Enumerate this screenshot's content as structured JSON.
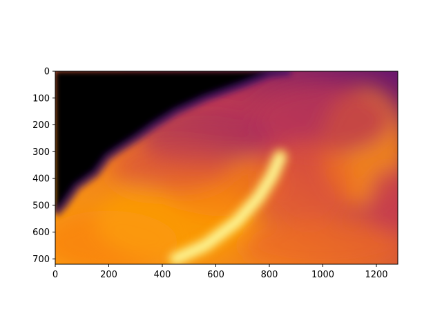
{
  "chart_data": {
    "type": "heatmap",
    "title": "",
    "xlabel": "",
    "ylabel": "",
    "colormap": "inferno",
    "image_size": {
      "cols": 1280,
      "rows": 720
    },
    "xlim": [
      0,
      1280
    ],
    "ylim": [
      720,
      0
    ],
    "x_ticks": [
      0,
      200,
      400,
      600,
      800,
      1000,
      1200
    ],
    "y_ticks": [
      0,
      100,
      200,
      300,
      400,
      500,
      600,
      700
    ],
    "x_tick_labels": [
      "0",
      "200",
      "400",
      "600",
      "800",
      "1000",
      "1200"
    ],
    "y_tick_labels": [
      "0",
      "100",
      "200",
      "300",
      "400",
      "500",
      "600",
      "700"
    ],
    "dark_region_boundary": [
      [
        0,
        530
      ],
      [
        30,
        500
      ],
      [
        80,
        430
      ],
      [
        150,
        380
      ],
      [
        195,
        320
      ],
      [
        230,
        295
      ],
      [
        300,
        250
      ],
      [
        370,
        200
      ],
      [
        450,
        150
      ],
      [
        560,
        100
      ],
      [
        700,
        50
      ],
      [
        800,
        10
      ],
      [
        880,
        0
      ]
    ],
    "bright_ridge": [
      [
        450,
        700
      ],
      [
        560,
        650
      ],
      [
        680,
        560
      ],
      [
        760,
        470
      ],
      [
        810,
        390
      ],
      [
        840,
        320
      ]
    ]
  }
}
